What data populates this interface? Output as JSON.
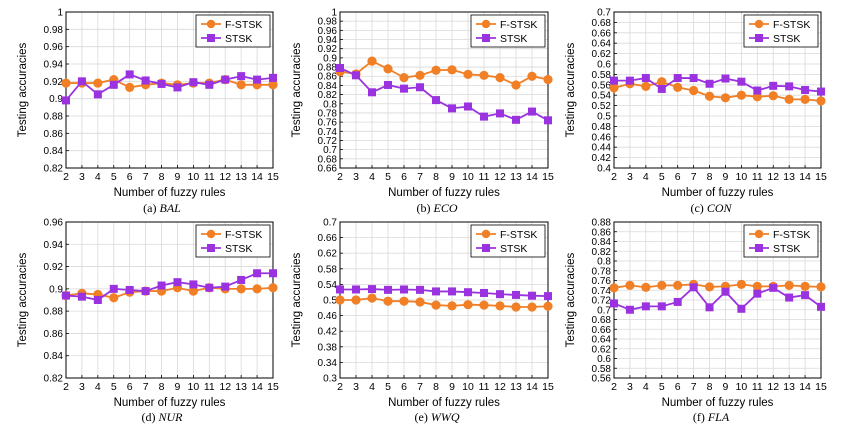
{
  "colors": {
    "fstsk": "#f07f26",
    "stsk": "#9b32e0",
    "axis": "#000000",
    "grid": "#d9d9d9"
  },
  "chart_data": [
    {
      "type": "line",
      "caption_prefix": "(a) ",
      "caption_name": "BAL",
      "xlabel": "Number of fuzzy rules",
      "ylabel": "Testing accuracies",
      "x": [
        2,
        3,
        4,
        5,
        6,
        7,
        8,
        9,
        10,
        11,
        12,
        13,
        14,
        15
      ],
      "ylim": [
        0.82,
        1.0
      ],
      "yticks": [
        "0.82",
        "0.84",
        "0.86",
        "0.88",
        "0.9",
        "0.92",
        "0.94",
        "0.96",
        "0.98",
        "1"
      ],
      "grid": true,
      "legend": "top-right",
      "series": [
        {
          "name": "F-STSK",
          "marker": "circle",
          "values": [
            0.918,
            0.918,
            0.918,
            0.922,
            0.913,
            0.916,
            0.918,
            0.916,
            0.918,
            0.918,
            0.922,
            0.916,
            0.916,
            0.916
          ]
        },
        {
          "name": "STSK",
          "marker": "square",
          "values": [
            0.898,
            0.92,
            0.905,
            0.916,
            0.928,
            0.921,
            0.917,
            0.913,
            0.919,
            0.916,
            0.922,
            0.926,
            0.922,
            0.924
          ]
        }
      ]
    },
    {
      "type": "line",
      "caption_prefix": "(b) ",
      "caption_name": "ECO",
      "xlabel": "Number of fuzzy rules",
      "ylabel": "Testing accuracies",
      "x": [
        2,
        3,
        4,
        5,
        6,
        7,
        8,
        9,
        10,
        11,
        12,
        13,
        14,
        15
      ],
      "ylim": [
        0.66,
        1.0
      ],
      "yticks": [
        "0.66",
        "0.68",
        "0.7",
        "0.72",
        "0.74",
        "0.76",
        "0.78",
        "0.8",
        "0.82",
        "0.84",
        "0.86",
        "0.88",
        "0.9",
        "0.92",
        "0.94",
        "0.96",
        "0.98",
        "1"
      ],
      "grid": true,
      "legend": "top-right",
      "series": [
        {
          "name": "F-STSK",
          "marker": "circle",
          "values": [
            0.87,
            0.865,
            0.893,
            0.876,
            0.857,
            0.862,
            0.873,
            0.874,
            0.864,
            0.862,
            0.857,
            0.841,
            0.86,
            0.853
          ]
        },
        {
          "name": "STSK",
          "marker": "square",
          "values": [
            0.878,
            0.862,
            0.825,
            0.841,
            0.833,
            0.836,
            0.808,
            0.79,
            0.794,
            0.772,
            0.779,
            0.765,
            0.783,
            0.764
          ]
        }
      ]
    },
    {
      "type": "line",
      "caption_prefix": "(c) ",
      "caption_name": "CON",
      "xlabel": "Number of fuzzy rules",
      "ylabel": "Testing accuracies",
      "x": [
        2,
        3,
        4,
        5,
        6,
        7,
        8,
        9,
        10,
        11,
        12,
        13,
        14,
        15
      ],
      "ylim": [
        0.4,
        0.7
      ],
      "yticks": [
        "0.4",
        "0.42",
        "0.44",
        "0.46",
        "0.48",
        "0.5",
        "0.52",
        "0.54",
        "0.56",
        "0.58",
        "0.6",
        "0.62",
        "0.64",
        "0.66",
        "0.68",
        "0.7"
      ],
      "grid": true,
      "legend": "top-right",
      "series": [
        {
          "name": "F-STSK",
          "marker": "circle",
          "values": [
            0.554,
            0.562,
            0.557,
            0.566,
            0.555,
            0.549,
            0.538,
            0.535,
            0.54,
            0.537,
            0.539,
            0.532,
            0.532,
            0.529
          ]
        },
        {
          "name": "STSK",
          "marker": "square",
          "values": [
            0.568,
            0.568,
            0.573,
            0.552,
            0.573,
            0.573,
            0.562,
            0.572,
            0.566,
            0.549,
            0.558,
            0.557,
            0.55,
            0.547
          ]
        }
      ]
    },
    {
      "type": "line",
      "caption_prefix": "(d) ",
      "caption_name": "NUR",
      "xlabel": "Number of fuzzy rules",
      "ylabel": "Testing accuracies",
      "x": [
        2,
        3,
        4,
        5,
        6,
        7,
        8,
        9,
        10,
        11,
        12,
        13,
        14,
        15
      ],
      "ylim": [
        0.82,
        0.96
      ],
      "yticks": [
        "0.82",
        "0.84",
        "0.86",
        "0.88",
        "0.9",
        "0.92",
        "0.94",
        "0.96"
      ],
      "grid": true,
      "legend": "top-right",
      "series": [
        {
          "name": "F-STSK",
          "marker": "circle",
          "values": [
            0.894,
            0.896,
            0.895,
            0.892,
            0.897,
            0.898,
            0.898,
            0.901,
            0.898,
            0.901,
            0.9,
            0.9,
            0.9,
            0.901
          ]
        },
        {
          "name": "STSK",
          "marker": "square",
          "values": [
            0.894,
            0.893,
            0.89,
            0.9,
            0.899,
            0.898,
            0.903,
            0.906,
            0.904,
            0.901,
            0.902,
            0.908,
            0.914,
            0.914
          ]
        }
      ]
    },
    {
      "type": "line",
      "caption_prefix": "(e) ",
      "caption_name": "WWQ",
      "xlabel": "Number of fuzzy rules",
      "ylabel": "Testing accuracies",
      "x": [
        2,
        3,
        4,
        5,
        6,
        7,
        8,
        9,
        10,
        11,
        12,
        13,
        14,
        15
      ],
      "ylim": [
        0.3,
        0.7
      ],
      "yticks": [
        "0.3",
        "0.34",
        "0.38",
        "0.42",
        "0.46",
        "0.5",
        "0.54",
        "0.58",
        "0.62",
        "0.66",
        "0.7"
      ],
      "grid": true,
      "legend": "top-right",
      "series": [
        {
          "name": "F-STSK",
          "marker": "circle",
          "values": [
            0.5,
            0.5,
            0.505,
            0.497,
            0.497,
            0.495,
            0.487,
            0.485,
            0.488,
            0.487,
            0.485,
            0.482,
            0.482,
            0.484
          ]
        },
        {
          "name": "STSK",
          "marker": "square",
          "values": [
            0.527,
            0.527,
            0.528,
            0.526,
            0.527,
            0.526,
            0.522,
            0.522,
            0.52,
            0.518,
            0.515,
            0.513,
            0.511,
            0.51
          ]
        }
      ]
    },
    {
      "type": "line",
      "caption_prefix": "(f) ",
      "caption_name": "FLA",
      "xlabel": "Number of fuzzy rules",
      "ylabel": "Testing accuracies",
      "x": [
        2,
        3,
        4,
        5,
        6,
        7,
        8,
        9,
        10,
        11,
        12,
        13,
        14,
        15
      ],
      "ylim": [
        0.56,
        0.88
      ],
      "yticks": [
        "0.56",
        "0.58",
        "0.6",
        "0.62",
        "0.64",
        "0.66",
        "0.68",
        "0.7",
        "0.72",
        "0.74",
        "0.76",
        "0.78",
        "0.8",
        "0.82",
        "0.84",
        "0.86",
        "0.88"
      ],
      "grid": true,
      "legend": "top-right",
      "series": [
        {
          "name": "F-STSK",
          "marker": "circle",
          "values": [
            0.745,
            0.75,
            0.746,
            0.75,
            0.75,
            0.752,
            0.747,
            0.748,
            0.752,
            0.748,
            0.748,
            0.75,
            0.748,
            0.747
          ]
        },
        {
          "name": "STSK",
          "marker": "square",
          "values": [
            0.713,
            0.7,
            0.707,
            0.707,
            0.716,
            0.746,
            0.705,
            0.737,
            0.702,
            0.733,
            0.745,
            0.725,
            0.73,
            0.706
          ]
        }
      ]
    }
  ]
}
